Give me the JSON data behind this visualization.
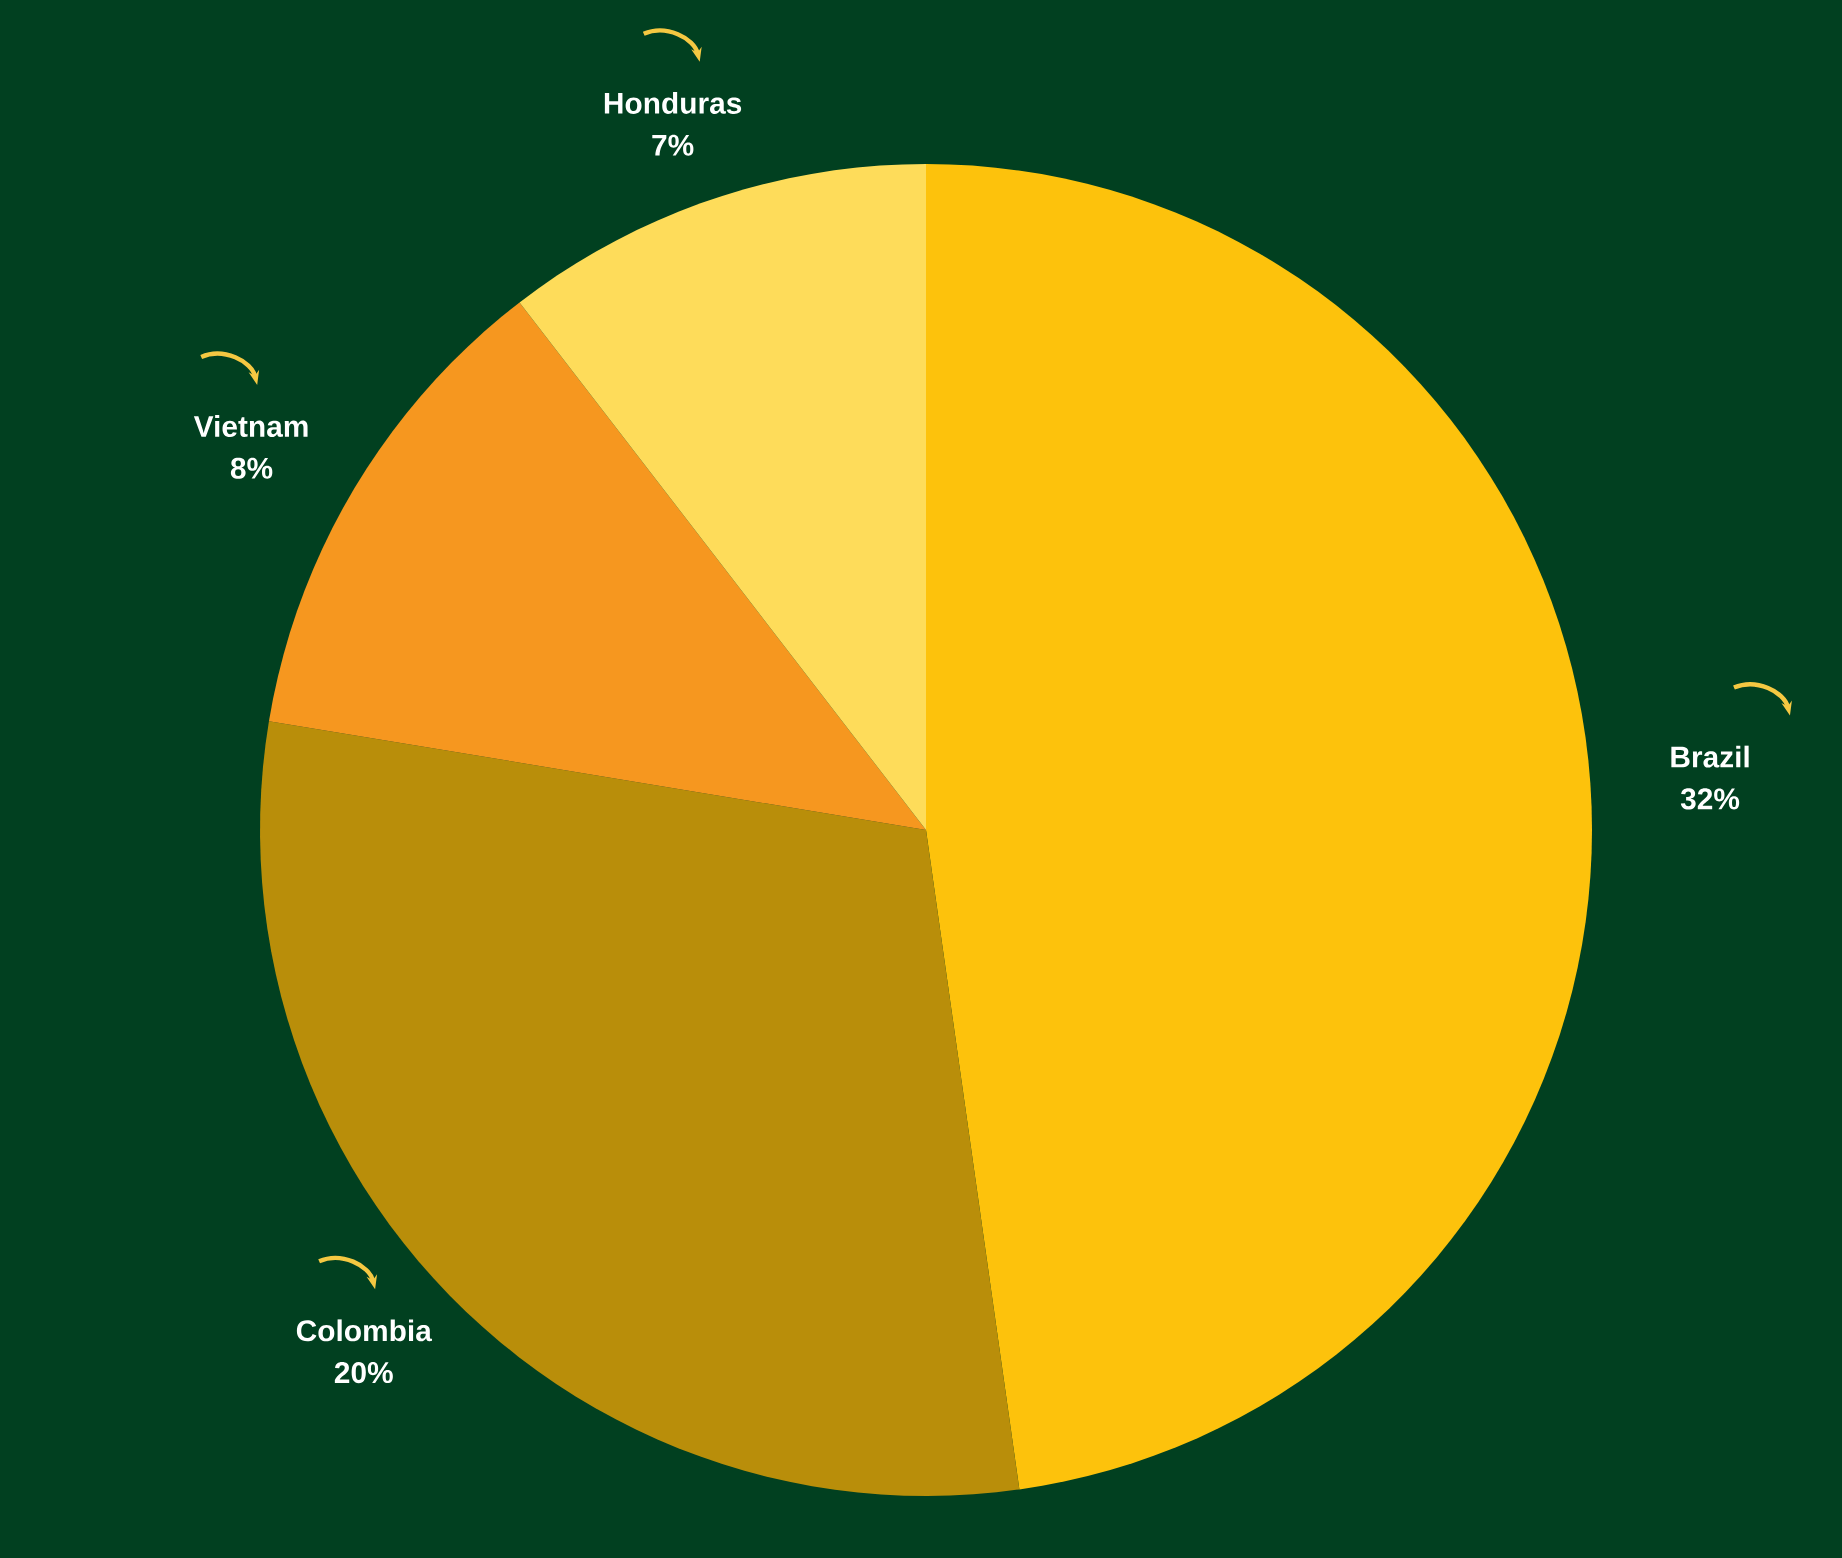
{
  "chart_data": {
    "type": "pie",
    "categories": [
      "Brazil",
      "Colombia",
      "Vietnam",
      "Honduras"
    ],
    "values": [
      32,
      20,
      8,
      7
    ],
    "value_labels": [
      "32%",
      "20%",
      "8%",
      "7%"
    ],
    "colors": [
      "#fdc20c",
      "#b98e0a",
      "#f6971f",
      "#fedc5a"
    ]
  }
}
